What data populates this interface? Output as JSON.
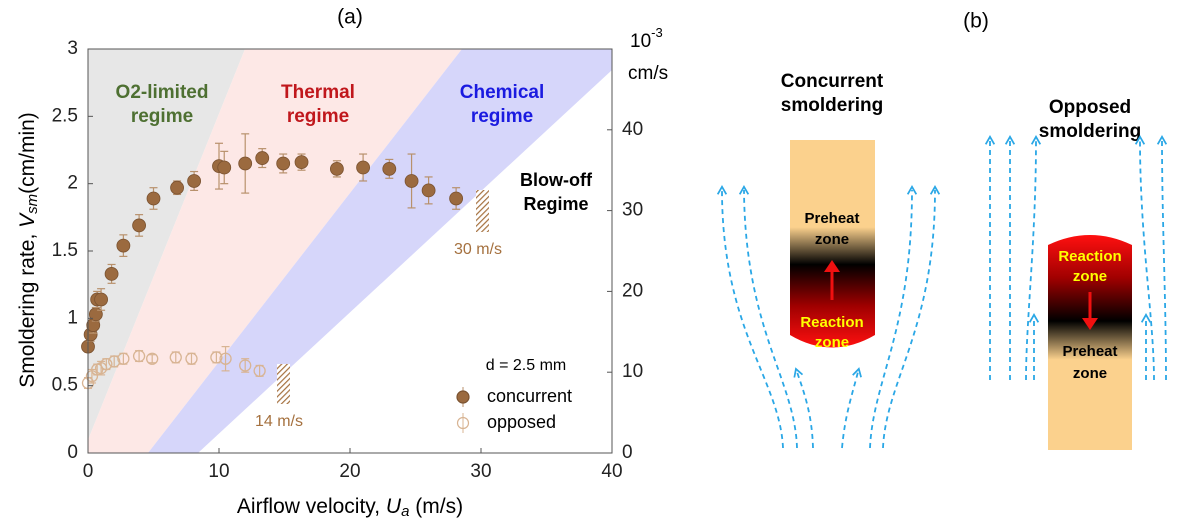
{
  "chart_data": {
    "type": "scatter",
    "title": "(a)",
    "xlabel": [
      "Airflow velocity, ",
      "U",
      "a",
      " (m/s)"
    ],
    "ylabel": [
      "Smoldering rate, ",
      "V",
      "sm",
      "(cm/min)"
    ],
    "y2label": [
      "10",
      "-3",
      "cm/s"
    ],
    "xlim": [
      0,
      40
    ],
    "xticks": [
      0,
      10,
      20,
      30,
      40
    ],
    "ylim": [
      0,
      3
    ],
    "yticks": [
      0,
      0.5,
      1,
      1.5,
      2,
      2.5,
      3
    ],
    "y2lim": [
      0,
      50
    ],
    "y2ticks": [
      0,
      10,
      20,
      30,
      40
    ],
    "series": [
      {
        "name": "concurrent",
        "color": "#9b6a3f",
        "filled": true,
        "x": [
          0,
          0.2,
          0.4,
          0.6,
          0.7,
          1.0,
          1.8,
          2.7,
          3.9,
          5.0,
          6.8,
          8.1,
          10.0,
          10.4,
          12.0,
          13.3,
          14.9,
          16.3,
          19.0,
          21.0,
          23.0,
          24.7,
          26.0,
          28.1
        ],
        "values": [
          0.79,
          0.88,
          0.95,
          1.03,
          1.14,
          1.14,
          1.33,
          1.54,
          1.69,
          1.89,
          1.97,
          2.02,
          2.13,
          2.12,
          2.15,
          2.19,
          2.15,
          2.16,
          2.11,
          2.12,
          2.11,
          2.02,
          1.95,
          1.89
        ],
        "errors": [
          0.04,
          0.05,
          0.06,
          0.05,
          0.06,
          0.08,
          0.07,
          0.08,
          0.08,
          0.08,
          0.05,
          0.07,
          0.17,
          0.12,
          0.22,
          0.07,
          0.07,
          0.06,
          0.06,
          0.1,
          0.07,
          0.2,
          0.1,
          0.08
        ]
      },
      {
        "name": "opposed",
        "color": "#d8b493",
        "filled": false,
        "x": [
          0,
          0.3,
          0.7,
          1.0,
          1.4,
          2.0,
          2.7,
          3.9,
          4.9,
          6.7,
          7.9,
          9.8,
          10.5,
          12.0,
          13.1
        ],
        "values": [
          0.52,
          0.57,
          0.62,
          0.63,
          0.66,
          0.68,
          0.7,
          0.72,
          0.7,
          0.71,
          0.7,
          0.71,
          0.7,
          0.65,
          0.61
        ],
        "errors": [
          0.04,
          0.05,
          0.04,
          0.05,
          0.04,
          0.04,
          0.04,
          0.04,
          0.03,
          0.04,
          0.04,
          0.04,
          0.09,
          0.05,
          0.04
        ]
      }
    ],
    "annotations": [
      {
        "lines": [
          "O2-limited",
          "regime"
        ],
        "color": "#4e7032"
      },
      {
        "lines": [
          "Thermal",
          "regime"
        ],
        "color": "#c0171c"
      },
      {
        "lines": [
          "Chemical",
          "regime"
        ],
        "color": "#1b1be0"
      },
      {
        "lines": [
          "Blow-off",
          "Regime"
        ],
        "color": "#000000"
      },
      {
        "lines": [
          "30 m/s"
        ],
        "color": "#a5713f"
      },
      {
        "lines": [
          "14 m/s"
        ],
        "color": "#a5713f"
      },
      {
        "lines": [
          "d = 2.5 mm"
        ],
        "color": "#000000"
      }
    ]
  },
  "diagram": {
    "label": "(b)",
    "panels": [
      {
        "title": [
          "Concurrent",
          "smoldering"
        ],
        "preheat": [
          "Preheat",
          "zone"
        ],
        "reaction": [
          "Reaction",
          "zone"
        ]
      },
      {
        "title": [
          "Opposed",
          "smoldering"
        ],
        "preheat": [
          "Preheat",
          "zone"
        ],
        "reaction": [
          "Reaction",
          "zone"
        ]
      }
    ]
  }
}
